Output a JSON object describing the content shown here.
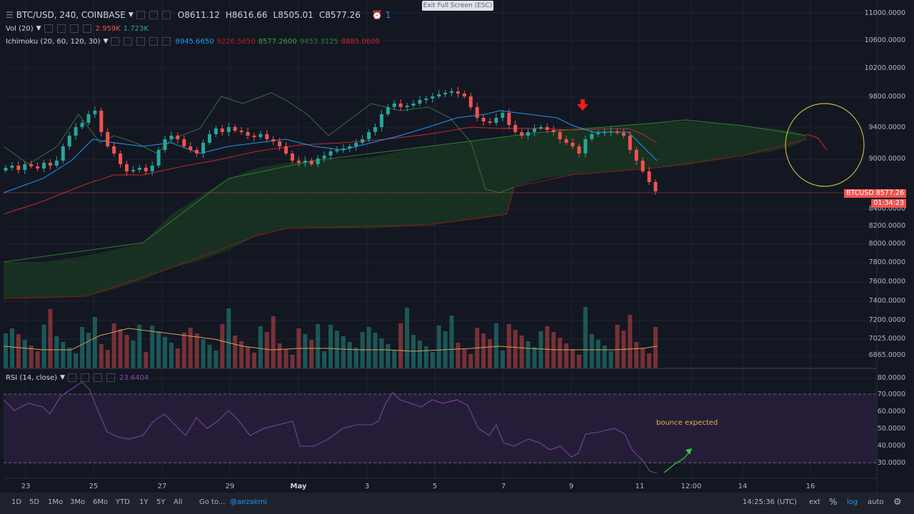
{
  "header": {
    "symbol": "BTC/USD, 240, COINBASE",
    "open_label": "O",
    "open": "8611.12",
    "high_label": "H",
    "high": "8616.66",
    "low_label": "L",
    "low": "8505.01",
    "close_label": "C",
    "close": "8577.26",
    "alerts_count": "1"
  },
  "exit_fullscreen": "Exit Full Screen (ESC)",
  "indicators": {
    "vol": {
      "label": "Vol (20)",
      "v1": "2.959K",
      "v2": "1.723K",
      "color_v1": "#ef5350",
      "color_v2": "#26a69a"
    },
    "ichimoku": {
      "label": "Ichimoku (20, 60, 120, 30)",
      "values": [
        "8945.6650",
        "9226.5650",
        "8577.2600",
        "9453.3125",
        "8885.0600"
      ],
      "colors": [
        "#2196f3",
        "#b71c1c",
        "#43a047",
        "#2e7d32",
        "#c62828"
      ]
    },
    "rsi": {
      "label": "RSI (14, close)",
      "value": "23.6404",
      "color": "#8e44ad"
    }
  },
  "price_axis": [
    "11000.0000",
    "10600.0000",
    "10200.0000",
    "9800.0000",
    "9400.0000",
    "9000.0000",
    "8400.0000",
    "8200.0000",
    "8000.0000",
    "7800.0000",
    "7600.0000",
    "7400.0000",
    "7200.0000",
    "7025.0000",
    "6865.0000"
  ],
  "price_tag": {
    "symbol": "BTCUSD",
    "price": "8577.26",
    "countdown": "01:34:23"
  },
  "rsi_axis": [
    "80.0000",
    "70.0000",
    "60.0000",
    "50.0000",
    "40.0000",
    "30.0000"
  ],
  "time_axis": [
    "23",
    "25",
    "27",
    "29",
    "May",
    "3",
    "5",
    "7",
    "9",
    "11",
    "12:00",
    "14",
    "16"
  ],
  "annotation": "bounce expected",
  "bottom_bar": {
    "ranges": [
      "1D",
      "5D",
      "1Mo",
      "3Mo",
      "6Mo",
      "YTD",
      "1Y",
      "5Y",
      "All"
    ],
    "goto": "Go to...",
    "user": "@aezakmi",
    "clock": "14:25:36 (UTC)",
    "ext": "ext",
    "percent": "%",
    "log": "log",
    "auto": "auto"
  },
  "colors": {
    "background": "#131722",
    "up": "#26a69a",
    "down": "#ef5350",
    "rsi_band": "#2a1f3d"
  }
}
